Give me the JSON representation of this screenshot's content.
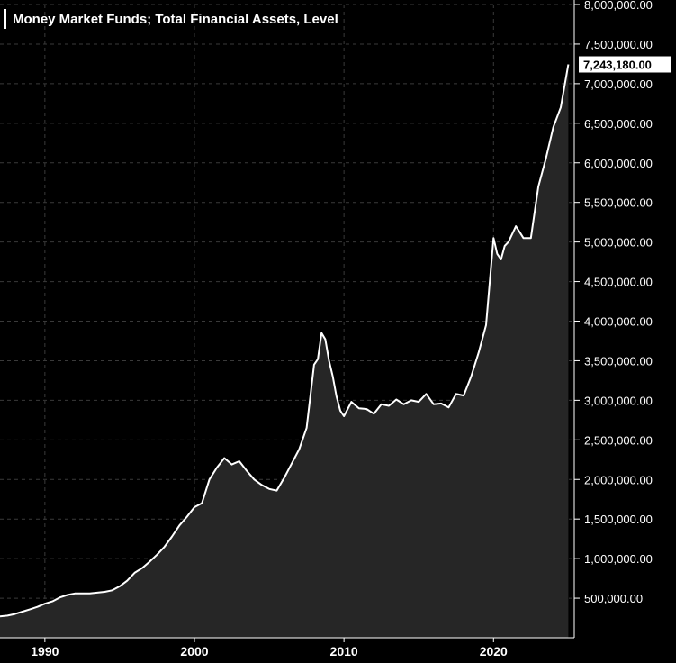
{
  "chart_data": {
    "type": "area",
    "title": "Money Market Funds; Total Financial Assets, Level",
    "xlabel": "",
    "ylabel": "",
    "xlim": [
      1987.0,
      2025.4
    ],
    "ylim": [
      0,
      8000000
    ],
    "grid": true,
    "x_ticks": [
      1990,
      2000,
      2010,
      2020
    ],
    "y_ticks": [
      {
        "value": 500000,
        "label": "500,000.00"
      },
      {
        "value": 1000000,
        "label": "1,000,000.00"
      },
      {
        "value": 1500000,
        "label": "1,500,000.00"
      },
      {
        "value": 2000000,
        "label": "2,000,000.00"
      },
      {
        "value": 2500000,
        "label": "2,500,000.00"
      },
      {
        "value": 3000000,
        "label": "3,000,000.00"
      },
      {
        "value": 3500000,
        "label": "3,500,000.00"
      },
      {
        "value": 4000000,
        "label": "4,000,000.00"
      },
      {
        "value": 4500000,
        "label": "4,500,000.00"
      },
      {
        "value": 5000000,
        "label": "5,000,000.00"
      },
      {
        "value": 5500000,
        "label": "5,500,000.00"
      },
      {
        "value": 6000000,
        "label": "6,000,000.00"
      },
      {
        "value": 6500000,
        "label": "6,500,000.00"
      },
      {
        "value": 7000000,
        "label": "7,000,000.00"
      },
      {
        "value": 7500000,
        "label": "7,500,000.00"
      },
      {
        "value": 8000000,
        "label": "8,000,000.00"
      }
    ],
    "last_value_label": "7,243,180.00",
    "colors": {
      "line": "#ffffff",
      "fill": "#262626",
      "background": "#000000",
      "grid": "#3a3a3a",
      "label_bg": "#ffffff"
    },
    "series": [
      {
        "x": [
          1987.0,
          1987.5,
          1988.0,
          1988.5,
          1989.0,
          1989.5,
          1990.0,
          1990.5,
          1991.0,
          1991.5,
          1992.0,
          1992.5,
          1993.0,
          1993.5,
          1994.0,
          1994.5,
          1995.0,
          1995.5,
          1996.0,
          1996.5,
          1997.0,
          1997.5,
          1998.0,
          1998.5,
          1999.0,
          1999.5,
          2000.0,
          2000.5,
          2001.0,
          2001.5,
          2002.0,
          2002.5,
          2003.0,
          2003.5,
          2004.0,
          2004.5,
          2005.0,
          2005.5,
          2006.0,
          2006.5,
          2007.0,
          2007.5,
          2008.0,
          2008.25,
          2008.5,
          2008.75,
          2009.0,
          2009.25,
          2009.5,
          2009.75,
          2010.0,
          2010.5,
          2011.0,
          2011.5,
          2012.0,
          2012.5,
          2013.0,
          2013.5,
          2014.0,
          2014.5,
          2015.0,
          2015.5,
          2016.0,
          2016.5,
          2017.0,
          2017.5,
          2018.0,
          2018.5,
          2019.0,
          2019.5,
          2020.0,
          2020.25,
          2020.5,
          2020.75,
          2021.0,
          2021.5,
          2022.0,
          2022.5,
          2023.0,
          2023.5,
          2024.0,
          2024.5,
          2025.0
        ],
        "values": [
          270000,
          280000,
          300000,
          330000,
          360000,
          390000,
          430000,
          460000,
          510000,
          540000,
          560000,
          560000,
          560000,
          570000,
          580000,
          600000,
          650000,
          720000,
          820000,
          880000,
          960000,
          1050000,
          1150000,
          1280000,
          1420000,
          1530000,
          1650000,
          1700000,
          2000000,
          2150000,
          2270000,
          2190000,
          2230000,
          2110000,
          2000000,
          1930000,
          1880000,
          1860000,
          2020000,
          2200000,
          2380000,
          2650000,
          3450000,
          3520000,
          3850000,
          3770000,
          3500000,
          3300000,
          3050000,
          2870000,
          2800000,
          2980000,
          2900000,
          2890000,
          2830000,
          2950000,
          2930000,
          3010000,
          2950000,
          3000000,
          2980000,
          3080000,
          2950000,
          2960000,
          2910000,
          3080000,
          3060000,
          3300000,
          3600000,
          3950000,
          5050000,
          4850000,
          4780000,
          4950000,
          5000000,
          5200000,
          5050000,
          5050000,
          5700000,
          6050000,
          6450000,
          6700000,
          7243180
        ]
      }
    ]
  }
}
